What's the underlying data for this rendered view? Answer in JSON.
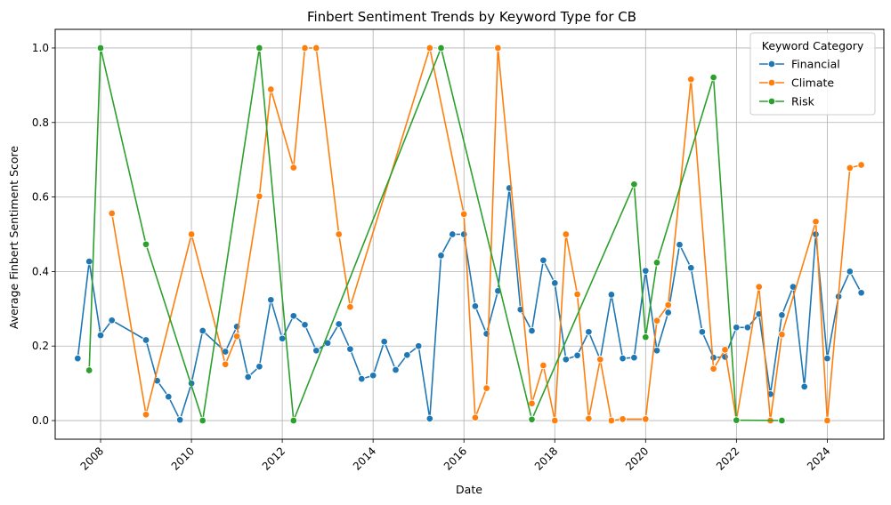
{
  "chart_data": {
    "type": "line",
    "title": "Finbert Sentiment Trends by Keyword Type for CB",
    "xlabel": "Date",
    "ylabel": "Average Finbert Sentiment Score",
    "x_ticks": [
      "2008",
      "2010",
      "2012",
      "2014",
      "2016",
      "2018",
      "2020",
      "2022",
      "2024"
    ],
    "y_ticks": [
      "0.0",
      "0.2",
      "0.4",
      "0.6",
      "0.8",
      "1.0"
    ],
    "xlim": [
      "2007-01-01",
      "2025-04-01"
    ],
    "ylim": [
      -0.05,
      1.05
    ],
    "grid": true,
    "legend": {
      "title": "Keyword Category",
      "placement": "top-right"
    },
    "series": [
      {
        "name": "Financial",
        "color": "#1f77b4",
        "points": [
          [
            "2007-07-01",
            0.167
          ],
          [
            "2007-10-01",
            0.427
          ],
          [
            "2008-01-01",
            0.229
          ],
          [
            "2008-04-01",
            0.269
          ],
          [
            "2009-01-01",
            0.216
          ],
          [
            "2009-04-01",
            0.107
          ],
          [
            "2009-07-01",
            0.064
          ],
          [
            "2009-10-01",
            0.002
          ],
          [
            "2010-01-01",
            0.1
          ],
          [
            "2010-04-01",
            0.241
          ],
          [
            "2010-10-01",
            0.185
          ],
          [
            "2011-01-01",
            0.252
          ],
          [
            "2011-04-01",
            0.117
          ],
          [
            "2011-07-01",
            0.145
          ],
          [
            "2011-10-01",
            0.324
          ],
          [
            "2012-01-01",
            0.22
          ],
          [
            "2012-04-01",
            0.281
          ],
          [
            "2012-07-01",
            0.257
          ],
          [
            "2012-10-01",
            0.188
          ],
          [
            "2013-01-01",
            0.208
          ],
          [
            "2013-04-01",
            0.259
          ],
          [
            "2013-07-01",
            0.192
          ],
          [
            "2013-10-01",
            0.112
          ],
          [
            "2014-01-01",
            0.121
          ],
          [
            "2014-04-01",
            0.212
          ],
          [
            "2014-07-01",
            0.136
          ],
          [
            "2014-10-01",
            0.176
          ],
          [
            "2015-01-01",
            0.2
          ],
          [
            "2015-04-01",
            0.005
          ],
          [
            "2015-07-01",
            0.443
          ],
          [
            "2015-10-01",
            0.5
          ],
          [
            "2016-01-01",
            0.5
          ],
          [
            "2016-04-01",
            0.307
          ],
          [
            "2016-07-01",
            0.233
          ],
          [
            "2016-10-01",
            0.348
          ],
          [
            "2017-01-01",
            0.624
          ],
          [
            "2017-04-01",
            0.298
          ],
          [
            "2017-07-01",
            0.241
          ],
          [
            "2017-10-01",
            0.43
          ],
          [
            "2018-01-01",
            0.369
          ],
          [
            "2018-04-01",
            0.164
          ],
          [
            "2018-07-01",
            0.175
          ],
          [
            "2018-10-01",
            0.238
          ],
          [
            "2019-01-01",
            0.164
          ],
          [
            "2019-04-01",
            0.338
          ],
          [
            "2019-07-01",
            0.167
          ],
          [
            "2019-10-01",
            0.169
          ],
          [
            "2020-01-01",
            0.402
          ],
          [
            "2020-04-01",
            0.188
          ],
          [
            "2020-07-01",
            0.29
          ],
          [
            "2020-10-01",
            0.472
          ],
          [
            "2021-01-01",
            0.41
          ],
          [
            "2021-04-01",
            0.238
          ],
          [
            "2021-07-01",
            0.169
          ],
          [
            "2021-10-01",
            0.171
          ],
          [
            "2022-01-01",
            0.25
          ],
          [
            "2022-04-01",
            0.25
          ],
          [
            "2022-07-01",
            0.286
          ],
          [
            "2022-10-01",
            0.071
          ],
          [
            "2023-01-01",
            0.283
          ],
          [
            "2023-04-01",
            0.359
          ],
          [
            "2023-07-01",
            0.091
          ],
          [
            "2023-10-01",
            0.5
          ],
          [
            "2024-01-01",
            0.167
          ],
          [
            "2024-04-01",
            0.333
          ],
          [
            "2024-07-01",
            0.4
          ],
          [
            "2024-10-01",
            0.343
          ]
        ]
      },
      {
        "name": "Climate",
        "color": "#ff7f0e",
        "points": [
          [
            "2008-04-01",
            0.556
          ],
          [
            "2009-01-01",
            0.016
          ],
          [
            "2010-01-01",
            0.5
          ],
          [
            "2010-10-01",
            0.151
          ],
          [
            "2011-01-01",
            0.226
          ],
          [
            "2011-07-01",
            0.602
          ],
          [
            "2011-10-01",
            0.889
          ],
          [
            "2012-04-01",
            0.679
          ],
          [
            "2012-07-01",
            1.0
          ],
          [
            "2012-10-01",
            1.0
          ],
          [
            "2013-04-01",
            0.5
          ],
          [
            "2013-07-01",
            0.305
          ],
          [
            "2015-04-01",
            1.0
          ],
          [
            "2016-01-01",
            0.554
          ],
          [
            "2016-04-01",
            0.008
          ],
          [
            "2016-07-01",
            0.087
          ],
          [
            "2016-10-01",
            1.0
          ],
          [
            "2017-07-01",
            0.046
          ],
          [
            "2017-10-01",
            0.148
          ],
          [
            "2018-01-01",
            0.0
          ],
          [
            "2018-04-01",
            0.5
          ],
          [
            "2018-07-01",
            0.339
          ],
          [
            "2018-10-01",
            0.005
          ],
          [
            "2019-01-01",
            0.164
          ],
          [
            "2019-04-01",
            0.0
          ],
          [
            "2019-07-01",
            0.004
          ],
          [
            "2020-01-01",
            0.004
          ],
          [
            "2020-04-01",
            0.268
          ],
          [
            "2020-07-01",
            0.31
          ],
          [
            "2021-01-01",
            0.916
          ],
          [
            "2021-07-01",
            0.139
          ],
          [
            "2021-10-01",
            0.19
          ],
          [
            "2022-01-01",
            0.001
          ],
          [
            "2022-07-01",
            0.359
          ],
          [
            "2022-10-01",
            0.0
          ],
          [
            "2023-01-01",
            0.231
          ],
          [
            "2023-10-01",
            0.534
          ],
          [
            "2024-01-01",
            0.0
          ],
          [
            "2024-07-01",
            0.678
          ],
          [
            "2024-10-01",
            0.686
          ]
        ]
      },
      {
        "name": "Risk",
        "color": "#2ca02c",
        "points": [
          [
            "2007-10-01",
            0.135
          ],
          [
            "2008-01-01",
            1.0
          ],
          [
            "2009-01-01",
            0.473
          ],
          [
            "2010-04-01",
            0.0
          ],
          [
            "2011-07-01",
            1.0
          ],
          [
            "2012-04-01",
            0.0
          ],
          [
            "2015-07-01",
            1.0
          ],
          [
            "2017-07-01",
            0.003
          ],
          [
            "2019-10-01",
            0.634
          ],
          [
            "2020-01-01",
            0.224
          ],
          [
            "2020-04-01",
            0.424
          ],
          [
            "2021-07-01",
            0.921
          ],
          [
            "2022-01-01",
            0.001
          ],
          [
            "2023-01-01",
            0.0
          ]
        ]
      }
    ]
  }
}
